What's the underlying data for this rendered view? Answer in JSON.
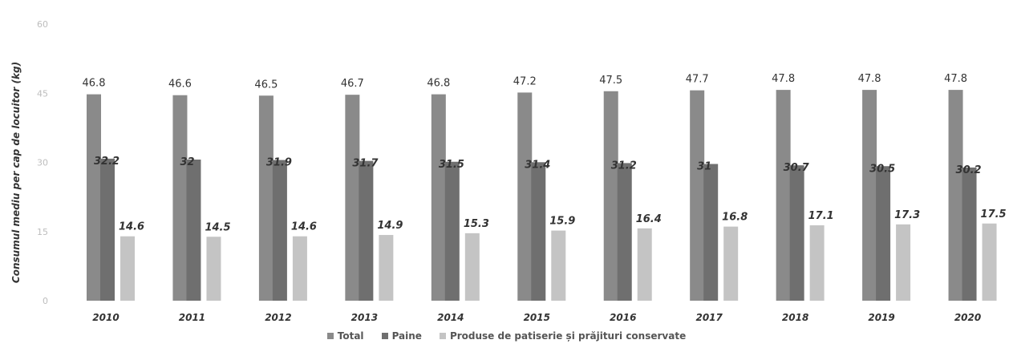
{
  "chart_data": {
    "type": "bar",
    "ylabel": "Consumul mediu per cap de locuitor (kg)",
    "ylim": [
      0,
      60
    ],
    "yticks": [
      0,
      15,
      30,
      45,
      60
    ],
    "categories": [
      "2010",
      "2011",
      "2012",
      "2013",
      "2014",
      "2015",
      "2016",
      "2017",
      "2018",
      "2019",
      "2020"
    ],
    "series": [
      {
        "name": "Total",
        "color": "#8a8a8a",
        "values": [
          46.8,
          46.6,
          46.5,
          46.7,
          46.8,
          47.2,
          47.5,
          47.7,
          47.8,
          47.8,
          47.8
        ]
      },
      {
        "name": "Paine",
        "color": "#6f6f6f",
        "values": [
          32.2,
          32,
          31.9,
          31.7,
          31.5,
          31.4,
          31.2,
          31,
          30.7,
          30.5,
          30.2
        ]
      },
      {
        "name": "Produse de patiserie și prăjituri conservate",
        "color": "#c4c4c4",
        "values": [
          14.6,
          14.5,
          14.6,
          14.9,
          15.3,
          15.9,
          16.4,
          16.8,
          17.1,
          17.3,
          17.5
        ]
      }
    ],
    "legend_position": "bottom",
    "grid": false
  }
}
